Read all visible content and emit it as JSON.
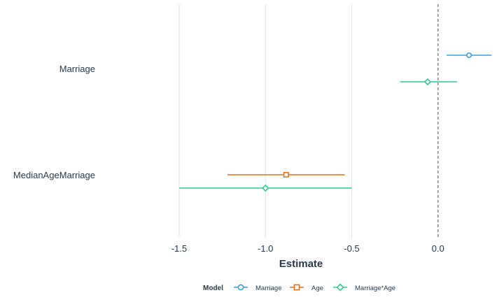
{
  "chart_data": {
    "type": "coefficient-plot",
    "xlabel": "Estimate",
    "x_ticks": [
      -1.5,
      -1.0,
      -0.5,
      0.0
    ],
    "x_tick_labels": [
      "-1.5",
      "-1.0",
      "-0.5",
      "0.0"
    ],
    "xlim": [
      -1.95,
      0.35
    ],
    "reference_line": 0.0,
    "terms": [
      "Marriage",
      "MedianAgeMarriage"
    ],
    "legend": {
      "title": "Model",
      "position": "bottom"
    },
    "series": [
      {
        "name": "Marriage",
        "color": "#3fa0d9",
        "marker": "circle",
        "points": [
          {
            "term": "Marriage",
            "estimate": 0.18,
            "low": 0.05,
            "high": 0.31
          }
        ]
      },
      {
        "name": "Age",
        "color": "#e8711a",
        "marker": "square",
        "points": [
          {
            "term": "MedianAgeMarriage",
            "estimate": -0.88,
            "low": -1.22,
            "high": -0.54
          }
        ]
      },
      {
        "name": "Marriage*Age",
        "color": "#2ecc8f",
        "marker": "diamond",
        "points": [
          {
            "term": "Marriage",
            "estimate": -0.06,
            "low": -0.22,
            "high": 0.11
          },
          {
            "term": "MedianAgeMarriage",
            "estimate": -1.0,
            "low": -1.5,
            "high": -0.5
          }
        ]
      }
    ]
  }
}
